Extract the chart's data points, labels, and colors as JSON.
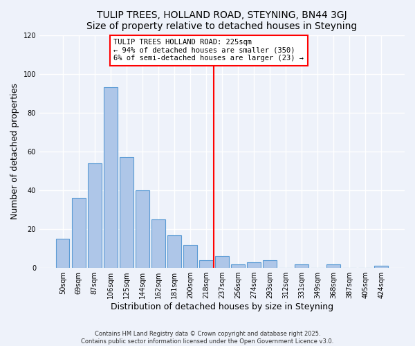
{
  "title": "TULIP TREES, HOLLAND ROAD, STEYNING, BN44 3GJ",
  "subtitle": "Size of property relative to detached houses in Steyning",
  "xlabel": "Distribution of detached houses by size in Steyning",
  "ylabel": "Number of detached properties",
  "bar_labels": [
    "50sqm",
    "69sqm",
    "87sqm",
    "106sqm",
    "125sqm",
    "144sqm",
    "162sqm",
    "181sqm",
    "200sqm",
    "218sqm",
    "237sqm",
    "256sqm",
    "274sqm",
    "293sqm",
    "312sqm",
    "331sqm",
    "349sqm",
    "368sqm",
    "387sqm",
    "405sqm",
    "424sqm"
  ],
  "bar_values": [
    15,
    36,
    54,
    93,
    57,
    40,
    25,
    17,
    12,
    4,
    6,
    2,
    3,
    4,
    0,
    2,
    0,
    2,
    0,
    0,
    1
  ],
  "bar_color": "#aec6e8",
  "bar_edge_color": "#5b9bd5",
  "vline_x": 9.5,
  "vline_color": "red",
  "annotation_title": "TULIP TREES HOLLAND ROAD: 225sqm",
  "annotation_line1": "← 94% of detached houses are smaller (350)",
  "annotation_line2": "6% of semi-detached houses are larger (23) →",
  "ylim": [
    0,
    120
  ],
  "yticks": [
    0,
    20,
    40,
    60,
    80,
    100,
    120
  ],
  "footer1": "Contains HM Land Registry data © Crown copyright and database right 2025.",
  "footer2": "Contains public sector information licensed under the Open Government Licence v3.0.",
  "bg_color": "#eef2fa",
  "grid_color": "#ffffff",
  "title_fontsize": 10,
  "subtitle_fontsize": 9,
  "tick_fontsize": 7,
  "axis_label_fontsize": 9,
  "annotation_fontsize": 7.5,
  "footer_fontsize": 6
}
